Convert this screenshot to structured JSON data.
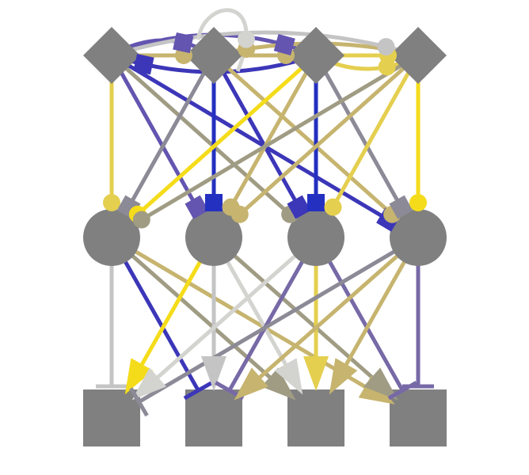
{
  "palette": {
    "gold": "#c6b46f",
    "yellow": "#e4cf4f",
    "bright_yellow": "#f5dc1a",
    "light_gray": "#c4c4c4",
    "silver": "#d3d3d0",
    "slate": "#8c8a96",
    "purple": "#6355b0",
    "lavender": "#7769a6",
    "indigo": "#3c36b8",
    "navy": "#2430c0",
    "taupe": "#a09c84",
    "node_fill": "#808080"
  },
  "nodes": {
    "regulators": [
      {
        "id": "r1",
        "shape": "diamond"
      },
      {
        "id": "r2",
        "shape": "diamond"
      },
      {
        "id": "r3",
        "shape": "diamond"
      },
      {
        "id": "r4",
        "shape": "diamond"
      }
    ],
    "intermediates": [
      {
        "id": "m1",
        "shape": "circle"
      },
      {
        "id": "m2",
        "shape": "circle"
      },
      {
        "id": "m3",
        "shape": "circle"
      },
      {
        "id": "m4",
        "shape": "circle"
      }
    ],
    "targets": [
      {
        "id": "t1",
        "shape": "square"
      },
      {
        "id": "t2",
        "shape": "square"
      },
      {
        "id": "t3",
        "shape": "square"
      },
      {
        "id": "t4",
        "shape": "square"
      }
    ]
  },
  "edge_types": [
    "dot",
    "square",
    "arrow",
    "bar"
  ],
  "edges": [
    {
      "from": "r1",
      "to": "r2",
      "color": "gold",
      "end": "dot"
    },
    {
      "from": "r2",
      "to": "r3",
      "color": "gold",
      "end": "dot"
    },
    {
      "from": "r3",
      "to": "r4",
      "color": "yellow",
      "end": "dot"
    },
    {
      "from": "r1",
      "to": "r3",
      "color": "purple",
      "end": "square"
    },
    {
      "from": "r1",
      "to": "r2",
      "color": "purple",
      "end": "square"
    },
    {
      "from": "r3",
      "to": "r1",
      "color": "indigo",
      "end": "square"
    },
    {
      "from": "r4",
      "to": "r2",
      "color": "gold",
      "end": "dot"
    },
    {
      "from": "r3",
      "to": "r4",
      "color": "yellow",
      "end": "dot"
    },
    {
      "from": "r1",
      "to": "r4",
      "color": "light_gray",
      "end": "dot"
    },
    {
      "from": "r2",
      "to": "r2",
      "color": "silver",
      "end": "dot"
    },
    {
      "from": "r1",
      "to": "m1",
      "color": "yellow",
      "end": "dot"
    },
    {
      "from": "r1",
      "to": "m2",
      "color": "purple",
      "end": "square"
    },
    {
      "from": "r1",
      "to": "m3",
      "color": "taupe",
      "end": "dot"
    },
    {
      "from": "r1",
      "to": "m4",
      "color": "indigo",
      "end": "square"
    },
    {
      "from": "r2",
      "to": "m1",
      "color": "slate",
      "end": "square"
    },
    {
      "from": "r2",
      "to": "m2",
      "color": "navy",
      "end": "square"
    },
    {
      "from": "r2",
      "to": "m3",
      "color": "indigo",
      "end": "square"
    },
    {
      "from": "r2",
      "to": "m4",
      "color": "gold",
      "end": "dot"
    },
    {
      "from": "r3",
      "to": "m1",
      "color": "bright_yellow",
      "end": "dot"
    },
    {
      "from": "r3",
      "to": "m2",
      "color": "gold",
      "end": "dot"
    },
    {
      "from": "r3",
      "to": "m3",
      "color": "navy",
      "end": "square"
    },
    {
      "from": "r3",
      "to": "m4",
      "color": "slate",
      "end": "square"
    },
    {
      "from": "r4",
      "to": "m1",
      "color": "taupe",
      "end": "dot"
    },
    {
      "from": "r4",
      "to": "m2",
      "color": "gold",
      "end": "dot"
    },
    {
      "from": "r4",
      "to": "m3",
      "color": "yellow",
      "end": "dot"
    },
    {
      "from": "r4",
      "to": "m4",
      "color": "bright_yellow",
      "end": "dot"
    },
    {
      "from": "m1",
      "to": "t1",
      "color": "light_gray",
      "end": "bar"
    },
    {
      "from": "m1",
      "to": "t2",
      "color": "indigo",
      "end": "bar"
    },
    {
      "from": "m1",
      "to": "t3",
      "color": "taupe",
      "end": "arrow"
    },
    {
      "from": "m1",
      "to": "t4",
      "color": "gold",
      "end": "arrow"
    },
    {
      "from": "m2",
      "to": "t1",
      "color": "bright_yellow",
      "end": "arrow"
    },
    {
      "from": "m2",
      "to": "t2",
      "color": "light_gray",
      "end": "arrow"
    },
    {
      "from": "m2",
      "to": "t3",
      "color": "silver",
      "end": "arrow"
    },
    {
      "from": "m2",
      "to": "t4",
      "color": "taupe",
      "end": "arrow"
    },
    {
      "from": "m3",
      "to": "t1",
      "color": "silver",
      "end": "arrow"
    },
    {
      "from": "m3",
      "to": "t2",
      "color": "lavender",
      "end": "bar"
    },
    {
      "from": "m3",
      "to": "t3",
      "color": "yellow",
      "end": "arrow"
    },
    {
      "from": "m3",
      "to": "t4",
      "color": "lavender",
      "end": "bar"
    },
    {
      "from": "m4",
      "to": "t1",
      "color": "slate",
      "end": "bar"
    },
    {
      "from": "m4",
      "to": "t2",
      "color": "gold",
      "end": "arrow"
    },
    {
      "from": "m4",
      "to": "t3",
      "color": "gold",
      "end": "arrow"
    },
    {
      "from": "m4",
      "to": "t4",
      "color": "lavender",
      "end": "bar"
    }
  ]
}
